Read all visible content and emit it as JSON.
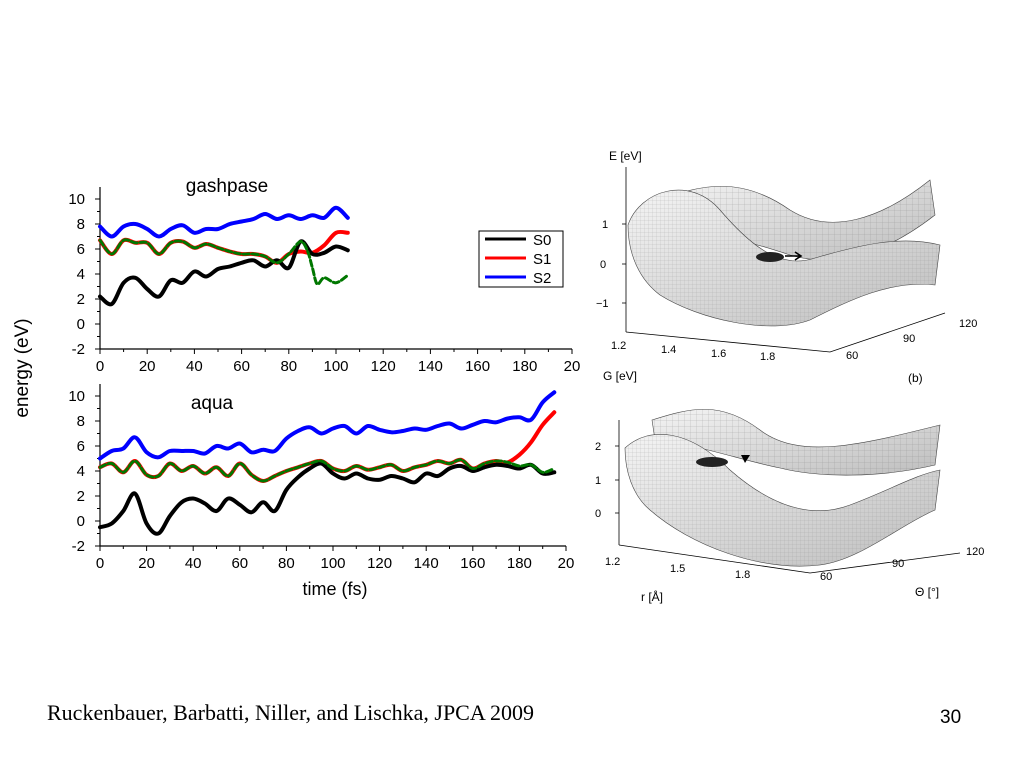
{
  "slide": {
    "citation": "Ruckenbauer, Barbatti, Niller, and Lischka, JPCA 2009",
    "page_number": "30"
  },
  "chart_data": [
    {
      "type": "line",
      "title": "gashpase",
      "xlabel": "",
      "ylabel": "energy (eV)",
      "xlim": [
        0,
        200
      ],
      "ylim": [
        -2,
        10
      ],
      "x_ticks": [
        "0",
        "20",
        "40",
        "60",
        "80",
        "100",
        "120",
        "140",
        "160",
        "180",
        "20"
      ],
      "y_ticks": [
        "-2",
        "0",
        "2",
        "4",
        "6",
        "8",
        "10"
      ],
      "legend": {
        "position": "right",
        "entries": [
          "S0",
          "S1",
          "S2"
        ]
      },
      "colors": {
        "S0": "#000000",
        "S1": "#ff0000",
        "S2": "#0000ff",
        "active": "#007700"
      },
      "series": [
        {
          "name": "S0",
          "x": [
            0,
            5,
            10,
            15,
            20,
            25,
            30,
            35,
            40,
            45,
            50,
            55,
            60,
            65,
            70,
            75,
            80,
            85,
            90,
            95,
            100,
            105
          ],
          "values": [
            2.2,
            1.6,
            3.3,
            3.7,
            2.8,
            2.2,
            3.5,
            3.3,
            4.2,
            3.8,
            4.4,
            4.6,
            4.9,
            5.1,
            4.6,
            5.1,
            4.5,
            6.6,
            5.6,
            5.7,
            6.2,
            5.9
          ]
        },
        {
          "name": "S1",
          "x": [
            0,
            5,
            10,
            15,
            20,
            25,
            30,
            35,
            40,
            45,
            50,
            55,
            60,
            65,
            70,
            75,
            80,
            85,
            90,
            95,
            100,
            105
          ],
          "values": [
            6.7,
            5.6,
            6.7,
            6.5,
            6.5,
            5.6,
            6.5,
            6.6,
            6.1,
            6.4,
            6.1,
            5.8,
            5.6,
            5.6,
            5.4,
            4.9,
            5.6,
            5.8,
            5.7,
            6.3,
            7.3,
            7.3
          ]
        },
        {
          "name": "S2",
          "x": [
            0,
            5,
            10,
            15,
            20,
            25,
            30,
            35,
            40,
            45,
            50,
            55,
            60,
            65,
            70,
            75,
            80,
            85,
            90,
            95,
            100,
            105
          ],
          "values": [
            7.8,
            7.0,
            7.8,
            8.0,
            7.6,
            7.0,
            7.6,
            7.9,
            7.3,
            7.6,
            7.6,
            8.0,
            8.2,
            8.4,
            8.8,
            8.4,
            8.7,
            8.4,
            8.7,
            8.5,
            9.3,
            8.5
          ]
        }
      ],
      "active_state": {
        "x": [
          0,
          5,
          10,
          15,
          20,
          25,
          30,
          35,
          40,
          45,
          50,
          55,
          60,
          65,
          70,
          75,
          80,
          85,
          88,
          90,
          92,
          95,
          100,
          105
        ],
        "values": [
          6.7,
          5.6,
          6.7,
          6.5,
          6.5,
          5.6,
          6.5,
          6.6,
          6.1,
          6.4,
          6.1,
          5.8,
          5.6,
          5.6,
          5.4,
          4.9,
          5.6,
          6.6,
          5.8,
          4.5,
          3.2,
          3.7,
          3.3,
          3.9
        ]
      }
    },
    {
      "type": "line",
      "title": "aqua",
      "xlabel": "time (fs)",
      "ylabel": "energy (eV)",
      "xlim": [
        0,
        200
      ],
      "ylim": [
        -2,
        10
      ],
      "x_ticks": [
        "0",
        "20",
        "40",
        "60",
        "80",
        "100",
        "120",
        "140",
        "160",
        "180",
        "20"
      ],
      "y_ticks": [
        "-2",
        "0",
        "2",
        "4",
        "6",
        "8",
        "10"
      ],
      "colors": {
        "S0": "#000000",
        "S1": "#ff0000",
        "S2": "#0000ff",
        "active": "#007700"
      },
      "series": [
        {
          "name": "S0",
          "x": [
            0,
            5,
            10,
            15,
            20,
            25,
            30,
            35,
            40,
            45,
            50,
            55,
            60,
            65,
            70,
            75,
            80,
            85,
            90,
            95,
            100,
            105,
            110,
            115,
            120,
            125,
            130,
            135,
            140,
            145,
            150,
            155,
            160,
            165,
            170,
            175,
            180,
            185,
            190,
            195
          ],
          "values": [
            -0.5,
            -0.2,
            0.8,
            2.2,
            -0.2,
            -1.0,
            0.4,
            1.5,
            1.8,
            1.4,
            0.8,
            1.8,
            1.3,
            0.7,
            1.5,
            0.8,
            2.5,
            3.5,
            4.2,
            4.6,
            3.8,
            3.4,
            3.8,
            3.4,
            3.3,
            3.6,
            3.4,
            3.1,
            3.8,
            3.6,
            4.2,
            4.4,
            4.0,
            4.3,
            4.5,
            4.4,
            4.2,
            4.5,
            3.8,
            3.9
          ]
        },
        {
          "name": "S1",
          "x": [
            0,
            5,
            10,
            15,
            20,
            25,
            30,
            35,
            40,
            45,
            50,
            55,
            60,
            65,
            70,
            75,
            80,
            85,
            90,
            95,
            100,
            105,
            110,
            115,
            120,
            125,
            130,
            135,
            140,
            145,
            150,
            155,
            160,
            165,
            170,
            175,
            180,
            185,
            190,
            195
          ],
          "values": [
            4.3,
            4.6,
            3.9,
            4.8,
            3.7,
            3.6,
            4.6,
            4.0,
            4.4,
            3.8,
            4.3,
            3.6,
            4.6,
            3.7,
            3.2,
            3.6,
            4.0,
            4.3,
            4.6,
            4.8,
            4.2,
            4.0,
            4.4,
            4.1,
            4.3,
            4.5,
            4.0,
            4.3,
            4.5,
            4.8,
            4.6,
            4.9,
            4.2,
            4.6,
            4.8,
            4.7,
            5.3,
            6.3,
            7.7,
            8.7
          ]
        },
        {
          "name": "S2",
          "x": [
            0,
            5,
            10,
            15,
            20,
            25,
            30,
            35,
            40,
            45,
            50,
            55,
            60,
            65,
            70,
            75,
            80,
            85,
            90,
            95,
            100,
            105,
            110,
            115,
            120,
            125,
            130,
            135,
            140,
            145,
            150,
            155,
            160,
            165,
            170,
            175,
            180,
            185,
            190,
            195
          ],
          "values": [
            5.0,
            5.6,
            5.8,
            6.7,
            5.5,
            5.1,
            5.6,
            5.6,
            5.6,
            5.4,
            6.0,
            5.8,
            6.2,
            5.5,
            5.7,
            5.6,
            6.6,
            7.2,
            7.5,
            7.0,
            7.4,
            7.6,
            7.0,
            7.6,
            7.3,
            7.1,
            7.2,
            7.4,
            7.3,
            7.6,
            7.8,
            7.4,
            7.7,
            8.0,
            7.9,
            8.2,
            8.3,
            8.1,
            9.5,
            10.3
          ]
        }
      ],
      "active_state": {
        "x": [
          0,
          5,
          10,
          15,
          20,
          25,
          30,
          35,
          40,
          45,
          50,
          55,
          60,
          65,
          70,
          75,
          80,
          85,
          90,
          95,
          100,
          105,
          110,
          115,
          120,
          125,
          130,
          135,
          140,
          145,
          150,
          155,
          160,
          165,
          170,
          175,
          180,
          185,
          190,
          195
        ],
        "values": [
          4.3,
          4.6,
          3.9,
          4.8,
          3.7,
          3.6,
          4.6,
          4.0,
          4.4,
          3.8,
          4.3,
          3.6,
          4.6,
          3.7,
          3.2,
          3.6,
          4.0,
          4.3,
          4.6,
          4.8,
          4.2,
          4.0,
          4.4,
          4.1,
          4.3,
          4.5,
          4.0,
          4.3,
          4.5,
          4.8,
          4.6,
          4.9,
          4.2,
          4.6,
          4.8,
          4.7,
          4.4,
          4.5,
          3.9,
          4.2
        ]
      }
    }
  ],
  "surfaces": {
    "top": {
      "ylabel": "E [eV]",
      "z_ticks": [
        "1",
        "0",
        "−1"
      ],
      "r_ticks": [
        "1.2",
        "1.4",
        "1.6",
        "1.8"
      ],
      "theta_ticks": [
        "60",
        "90",
        "120"
      ],
      "xlabel": "G [eV]",
      "panel_label": "(b)"
    },
    "bottom": {
      "z_ticks": [
        "2",
        "1",
        "0"
      ],
      "r_ticks": [
        "1.2",
        "1.5",
        "1.8"
      ],
      "theta_ticks": [
        "60",
        "90",
        "120"
      ],
      "r_label": "r [Å]",
      "theta_label": "Θ [°]"
    }
  }
}
